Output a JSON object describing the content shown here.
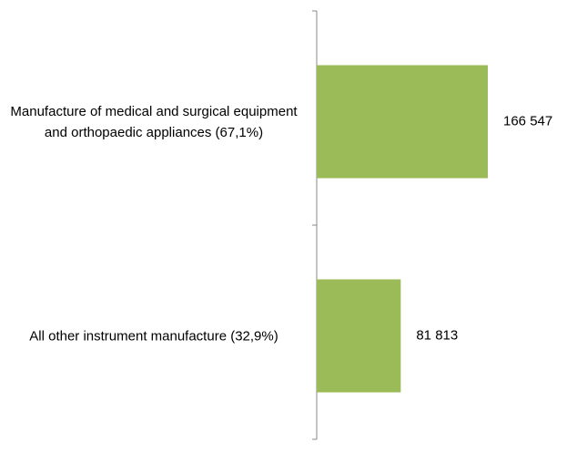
{
  "chart_data": {
    "type": "hbar",
    "categories": [
      "Manufacture of medical and surgical equipment and orthopaedic appliances (67,1%)",
      "All other instrument manufacture (32,9%)"
    ],
    "values": [
      166547,
      81813
    ],
    "value_labels": [
      "166 547",
      "81 813"
    ],
    "color": "#9bbb59"
  }
}
